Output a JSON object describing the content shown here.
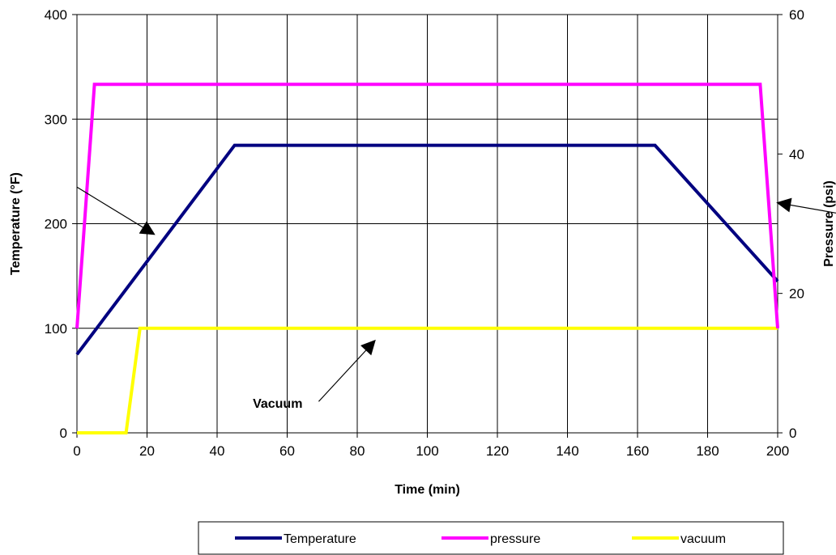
{
  "chart_data": {
    "type": "line",
    "xlabel": "Time (min)",
    "ylabel": "Temperature (°F)",
    "y2label": "Pressure (psi)",
    "xlim": [
      0,
      200
    ],
    "ylim": [
      0,
      400
    ],
    "y2lim": [
      0,
      60
    ],
    "x_ticks": [
      "0",
      "20",
      "40",
      "60",
      "80",
      "100",
      "120",
      "140",
      "160",
      "180",
      "200"
    ],
    "y_ticks": [
      "0",
      "100",
      "200",
      "300",
      "400"
    ],
    "y2_ticks": [
      "0",
      "20",
      "40",
      "60"
    ],
    "grid": true,
    "legend_position": "bottom",
    "series": [
      {
        "name": "Temperature",
        "axis": "left",
        "color": "#000080",
        "x": [
          0,
          45,
          165,
          200
        ],
        "y": [
          75,
          275,
          275,
          145
        ]
      },
      {
        "name": "pressure",
        "axis": "right",
        "color": "#FF00FF",
        "x": [
          0,
          5,
          195,
          200
        ],
        "y": [
          15,
          50,
          50,
          15
        ]
      },
      {
        "name": "vacuum",
        "axis": "left",
        "color": "#FFFF00",
        "x": [
          0,
          14,
          18,
          200
        ],
        "y": [
          0,
          0,
          100,
          100
        ]
      }
    ],
    "annotations": [
      {
        "text": "",
        "from_x": 0,
        "from_y": 235,
        "to_x": 22,
        "to_y": 190,
        "axis": "left"
      },
      {
        "text": "",
        "from_x": 217,
        "from_y": 210,
        "to_x": 200,
        "to_y": 220,
        "axis": "left"
      },
      {
        "text": "Vacuum",
        "from_x": 69,
        "from_y": 30,
        "to_x": 85,
        "to_y": 88,
        "axis": "left"
      }
    ]
  }
}
